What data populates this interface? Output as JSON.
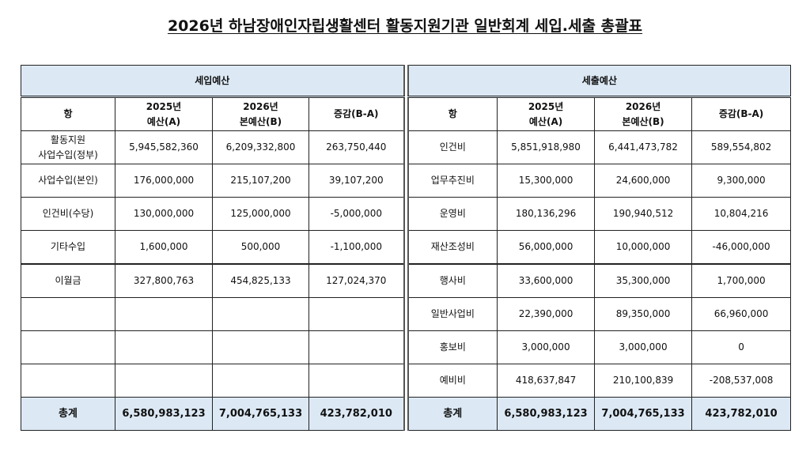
{
  "title": "2026년 하남장애인자립생활센터 활동지원기관 일반회계 세입.세출 총괄표",
  "revenue": {
    "section_label": "세입예산",
    "headers": [
      "항",
      "2025년\n예산(A)",
      "2026년\n본예산(B)",
      "증감(B-A)"
    ],
    "rows": [
      [
        "활동지원\n사업수입(정부)",
        "5,945,582,360",
        "6,209,332,800",
        "263,750,440"
      ],
      [
        "사업수입(본인)",
        "176,000,000",
        "215,107,200",
        "39,107,200"
      ],
      [
        "인건비(수당)",
        "130,000,000",
        "125,000,000",
        "-5,000,000"
      ],
      [
        "기타수입",
        "1,600,000",
        "500,000",
        "-1,100,000"
      ],
      [
        "이월금",
        "327,800,763",
        "454,825,133",
        "127,024,370"
      ],
      [
        "",
        "",
        "",
        ""
      ],
      [
        "",
        "",
        "",
        ""
      ],
      [
        "",
        "",
        "",
        ""
      ]
    ],
    "total": [
      "총계",
      "6,580,983,123",
      "7,004,765,133",
      "423,782,010"
    ]
  },
  "expenditure": {
    "section_label": "세출예산",
    "headers": [
      "항",
      "2025년\n예산(A)",
      "2026년\n본예산(B)",
      "증감(B-A)"
    ],
    "rows": [
      [
        "인건비",
        "5,851,918,980",
        "6,441,473,782",
        "589,554,802"
      ],
      [
        "업무추진비",
        "15,300,000",
        "24,600,000",
        "9,300,000"
      ],
      [
        "운영비",
        "180,136,296",
        "190,940,512",
        "10,804,216"
      ],
      [
        "재산조성비",
        "56,000,000",
        "10,000,000",
        "-46,000,000"
      ],
      [
        "행사비",
        "33,600,000",
        "35,300,000",
        "1,700,000"
      ],
      [
        "일반사업비",
        "22,390,000",
        "89,350,000",
        "66,960,000"
      ],
      [
        "홍보비",
        "3,000,000",
        "3,000,000",
        "0"
      ],
      [
        "예비비",
        "418,637,847",
        "210,100,839",
        "-208,537,008"
      ]
    ],
    "total": [
      "총계",
      "6,580,983,123",
      "7,004,765,133",
      "423,782,010"
    ]
  },
  "colors": {
    "header_bg": "#dce9f5",
    "border": "#222222"
  }
}
